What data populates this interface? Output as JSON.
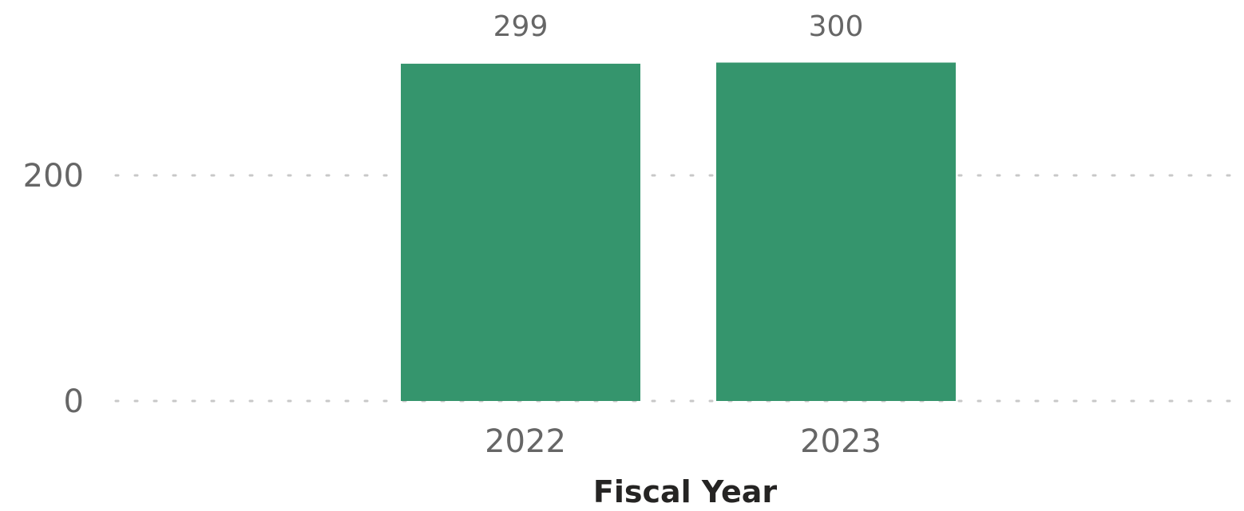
{
  "chart_data": {
    "type": "bar",
    "categories": [
      "2022",
      "2023"
    ],
    "values": [
      299,
      300
    ],
    "data_labels": [
      "299",
      "300"
    ],
    "title": "",
    "xlabel": "Fiscal Year",
    "ylabel": "",
    "ylim": [
      0,
      300
    ],
    "y_ticks": [
      0,
      200
    ],
    "y_tick_labels": [
      "0",
      "200"
    ],
    "grid": true,
    "bar_color": "#35956D",
    "gridline_color": "#C8C8C8",
    "text_color": "#666666",
    "axis_title_color": "#252423"
  }
}
